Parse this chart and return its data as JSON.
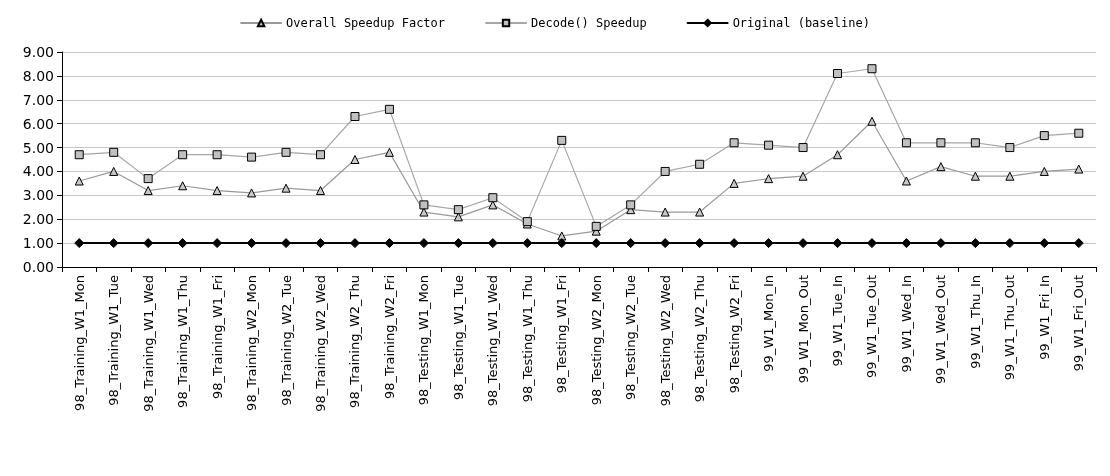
{
  "chart_data": {
    "type": "line",
    "categories": [
      "98_Training_W1_Mon",
      "98_Training_W1_Tue",
      "98_Training_W1_Wed",
      "98_Training_W1_Thu",
      "98_Training_W1_Fri",
      "98_Training_W2_Mon",
      "98_Training_W2_Tue",
      "98_Training_W2_Wed",
      "98_Training_W2_Thu",
      "98_Training_W2_Fri",
      "98_Testing_W1_Mon",
      "98_Testing_W1_Tue",
      "98_Testing_W1_Wed",
      "98_Testing_W1_Thu",
      "98_Testing_W1_Fri",
      "98_Testing_W2_Mon",
      "98_Testing_W2_Tue",
      "98_Testing_W2_Wed",
      "98_Testing_W2_Thu",
      "98_Testing_W2_Fri",
      "99_W1_Mon_In",
      "99_W1_Mon_Out",
      "99_W1_Tue_In",
      "99_W1_Tue_Out",
      "99_W1_Wed_In",
      "99_W1_Wed_Out",
      "99_W1_Thu_In",
      "99_W1_Thu_Out",
      "99_W1_Fri_In",
      "99_W1_Fri_Out"
    ],
    "series": [
      {
        "name": "Overall Speedup Factor",
        "color": "#999999",
        "marker": "triangle",
        "values": [
          3.6,
          4.0,
          3.2,
          3.4,
          3.2,
          3.1,
          3.3,
          3.2,
          4.5,
          4.8,
          2.3,
          2.1,
          2.6,
          1.8,
          1.3,
          1.5,
          2.4,
          2.3,
          2.3,
          3.5,
          3.7,
          3.8,
          4.7,
          6.1,
          3.6,
          4.2,
          3.8,
          3.8,
          4.0,
          4.1
        ]
      },
      {
        "name": "Decode() Speedup",
        "color": "#a6a6a6",
        "marker": "square",
        "values": [
          4.7,
          4.8,
          3.7,
          4.7,
          4.7,
          4.6,
          4.8,
          4.7,
          6.3,
          6.6,
          2.6,
          2.4,
          2.9,
          1.9,
          5.3,
          1.7,
          2.6,
          4.0,
          4.3,
          5.2,
          5.1,
          5.0,
          8.1,
          8.3,
          5.2,
          5.2,
          5.2,
          5.0,
          5.5,
          5.6
        ]
      },
      {
        "name": "Original (baseline)",
        "color": "#000000",
        "marker": "diamond",
        "values": [
          1,
          1,
          1,
          1,
          1,
          1,
          1,
          1,
          1,
          1,
          1,
          1,
          1,
          1,
          1,
          1,
          1,
          1,
          1,
          1,
          1,
          1,
          1,
          1,
          1,
          1,
          1,
          1,
          1,
          1
        ]
      }
    ],
    "ylim": [
      0,
      9
    ],
    "yticks": [
      {
        "value": 0,
        "label": "0.00"
      },
      {
        "value": 1,
        "label": "1.00"
      },
      {
        "value": 2,
        "label": "2.00"
      },
      {
        "value": 3,
        "label": "3.00"
      },
      {
        "value": 4,
        "label": "4.00"
      },
      {
        "value": 5,
        "label": "5.00"
      },
      {
        "value": 6,
        "label": "6.00"
      },
      {
        "value": 7,
        "label": "7.00"
      },
      {
        "value": 8,
        "label": "8.00"
      },
      {
        "value": 9,
        "label": "9.00"
      }
    ],
    "grid": "y",
    "legend": "top",
    "line_style": "solid"
  }
}
